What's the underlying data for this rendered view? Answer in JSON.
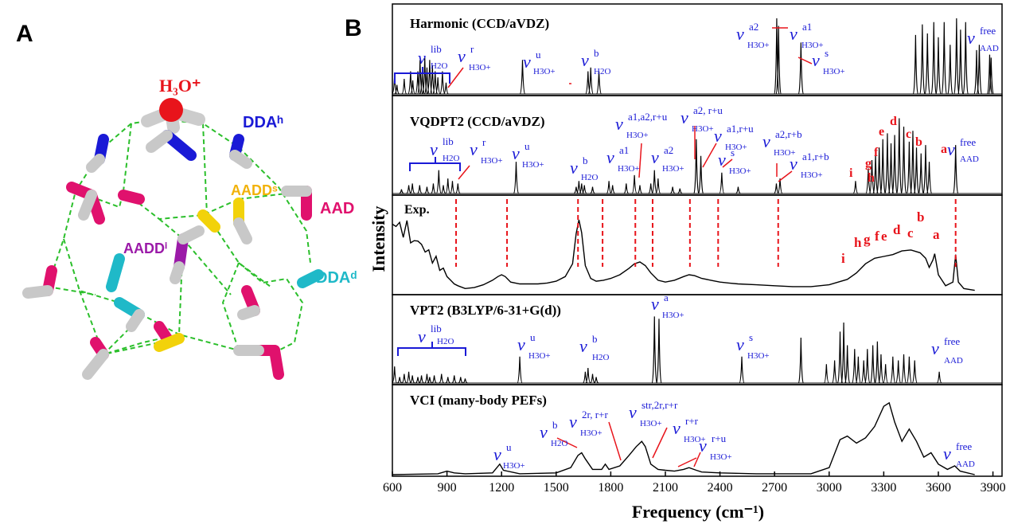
{
  "panel_a": {
    "letter": "A",
    "labels": [
      {
        "id": "h3o",
        "text": "H₃O⁺",
        "color": "#e8141b"
      },
      {
        "id": "ddah",
        "text": "DDAʰ",
        "color": "#1a1ad6"
      },
      {
        "id": "aadds",
        "text": "AADDˢ",
        "color": "#f2b20a"
      },
      {
        "id": "aad",
        "text": "AAD",
        "color": "#e0116d"
      },
      {
        "id": "aaddi",
        "text": "AADDⁱ",
        "color": "#9b1aa8"
      },
      {
        "id": "ddad",
        "text": "DDAᵈ",
        "color": "#1fb9c8"
      }
    ]
  },
  "panel_b": {
    "letter": "B",
    "ylabel": "Intensity",
    "xlabel": "Frequency (cm⁻¹)",
    "xticks": [
      600,
      900,
      1200,
      1500,
      1800,
      2100,
      2400,
      2700,
      3000,
      3300,
      3600,
      3900
    ],
    "subplot_titles": [
      "Harmonic (CCD/aVDZ)",
      "VQDPT2 (CCD/aVDZ)",
      "Exp.",
      "VPT2 (B3LYP/6-31+G(d))",
      "VCI (many-body PEFs)"
    ],
    "peak_letters": [
      "a",
      "b",
      "c",
      "d",
      "e",
      "f",
      "g",
      "h",
      "i"
    ]
  },
  "colors": {
    "spectrum": "#000000",
    "annotation": "#1a1ad6",
    "marker": "#e8141b"
  },
  "chart_data": {
    "type": "line",
    "xlim": [
      600,
      3950
    ],
    "xlabel": "Frequency (cm⁻¹)",
    "ylabel": "Intensity",
    "series": [
      {
        "name": "Harmonic (CCD/aVDZ)",
        "sticks": [
          [
            612,
            0.25
          ],
          [
            625,
            0.12
          ],
          [
            665,
            0.2
          ],
          [
            700,
            0.3
          ],
          [
            712,
            0.18
          ],
          [
            740,
            0.3
          ],
          [
            752,
            0.45
          ],
          [
            764,
            0.3
          ],
          [
            778,
            0.5
          ],
          [
            790,
            0.35
          ],
          [
            805,
            0.45
          ],
          [
            820,
            0.38
          ],
          [
            835,
            0.3
          ],
          [
            850,
            0.22
          ],
          [
            875,
            0.3
          ],
          [
            895,
            0.15
          ],
          [
            1315,
            0.45
          ],
          [
            1675,
            0.3
          ],
          [
            1690,
            0.35
          ],
          [
            1735,
            0.3
          ],
          [
            2712,
            1.0
          ],
          [
            2722,
            0.9
          ],
          [
            2845,
            0.68
          ],
          [
            3475,
            0.78
          ],
          [
            3512,
            0.92
          ],
          [
            3540,
            0.8
          ],
          [
            3575,
            0.95
          ],
          [
            3600,
            0.75
          ],
          [
            3632,
            0.95
          ],
          [
            3665,
            0.65
          ],
          [
            3700,
            1.0
          ],
          [
            3722,
            0.85
          ],
          [
            3750,
            0.95
          ],
          [
            3810,
            0.58
          ],
          [
            3825,
            0.65
          ],
          [
            3882,
            0.52
          ],
          [
            3890,
            0.48
          ]
        ]
      },
      {
        "name": "VQDPT2 (CCD/aVDZ)",
        "sticks": [
          [
            650,
            0.05
          ],
          [
            690,
            0.1
          ],
          [
            710,
            0.12
          ],
          [
            750,
            0.1
          ],
          [
            790,
            0.08
          ],
          [
            825,
            0.12
          ],
          [
            855,
            0.28
          ],
          [
            880,
            0.1
          ],
          [
            905,
            0.18
          ],
          [
            930,
            0.15
          ],
          [
            960,
            0.12
          ],
          [
            1280,
            0.38
          ],
          [
            1610,
            0.08
          ],
          [
            1625,
            0.15
          ],
          [
            1640,
            0.12
          ],
          [
            1655,
            0.1
          ],
          [
            1700,
            0.08
          ],
          [
            1790,
            0.15
          ],
          [
            1810,
            0.1
          ],
          [
            1885,
            0.12
          ],
          [
            1930,
            0.22
          ],
          [
            1960,
            0.1
          ],
          [
            2020,
            0.12
          ],
          [
            2040,
            0.28
          ],
          [
            2060,
            0.18
          ],
          [
            2140,
            0.08
          ],
          [
            2180,
            0.06
          ],
          [
            2270,
            0.65
          ],
          [
            2295,
            0.45
          ],
          [
            2410,
            0.25
          ],
          [
            2500,
            0.08
          ],
          [
            2710,
            0.12
          ],
          [
            2730,
            0.18
          ],
          [
            3145,
            0.15
          ],
          [
            3215,
            0.3
          ],
          [
            3235,
            0.4
          ],
          [
            3255,
            0.48
          ],
          [
            3275,
            0.55
          ],
          [
            3295,
            0.65
          ],
          [
            3320,
            0.72
          ],
          [
            3340,
            0.6
          ],
          [
            3360,
            0.7
          ],
          [
            3385,
            0.9
          ],
          [
            3410,
            0.8
          ],
          [
            3440,
            0.62
          ],
          [
            3460,
            0.75
          ],
          [
            3480,
            0.55
          ],
          [
            3505,
            0.48
          ],
          [
            3530,
            0.58
          ],
          [
            3550,
            0.38
          ],
          [
            3695,
            0.58
          ]
        ]
      },
      {
        "name": "Exp.",
        "points": [
          [
            600,
            0.7
          ],
          [
            620,
            0.78
          ],
          [
            640,
            0.72
          ],
          [
            660,
            0.66
          ],
          [
            680,
            0.74
          ],
          [
            700,
            0.6
          ],
          [
            720,
            0.52
          ],
          [
            740,
            0.62
          ],
          [
            760,
            0.48
          ],
          [
            780,
            0.5
          ],
          [
            800,
            0.42
          ],
          [
            820,
            0.38
          ],
          [
            840,
            0.35
          ],
          [
            860,
            0.3
          ],
          [
            880,
            0.22
          ],
          [
            900,
            0.18
          ],
          [
            920,
            0.14
          ],
          [
            940,
            0.1
          ],
          [
            960,
            0.08
          ],
          [
            1000,
            0.05
          ],
          [
            1050,
            0.06
          ],
          [
            1100,
            0.09
          ],
          [
            1150,
            0.14
          ],
          [
            1180,
            0.18
          ],
          [
            1200,
            0.2
          ],
          [
            1220,
            0.18
          ],
          [
            1250,
            0.12
          ],
          [
            1300,
            0.1
          ],
          [
            1350,
            0.1
          ],
          [
            1400,
            0.1
          ],
          [
            1450,
            0.11
          ],
          [
            1500,
            0.13
          ],
          [
            1550,
            0.18
          ],
          [
            1590,
            0.32
          ],
          [
            1610,
            0.65
          ],
          [
            1625,
            0.8
          ],
          [
            1640,
            0.66
          ],
          [
            1660,
            0.3
          ],
          [
            1690,
            0.16
          ],
          [
            1720,
            0.13
          ],
          [
            1760,
            0.14
          ],
          [
            1800,
            0.16
          ],
          [
            1850,
            0.2
          ],
          [
            1900,
            0.27
          ],
          [
            1930,
            0.32
          ],
          [
            1960,
            0.34
          ],
          [
            1990,
            0.3
          ],
          [
            2020,
            0.22
          ],
          [
            2060,
            0.14
          ],
          [
            2100,
            0.12
          ],
          [
            2150,
            0.14
          ],
          [
            2200,
            0.18
          ],
          [
            2230,
            0.2
          ],
          [
            2260,
            0.19
          ],
          [
            2300,
            0.16
          ],
          [
            2350,
            0.14
          ],
          [
            2400,
            0.12
          ],
          [
            2450,
            0.11
          ],
          [
            2500,
            0.1
          ],
          [
            2600,
            0.09
          ],
          [
            2700,
            0.08
          ],
          [
            2800,
            0.07
          ],
          [
            2900,
            0.07
          ],
          [
            3000,
            0.09
          ],
          [
            3050,
            0.12
          ],
          [
            3100,
            0.15
          ],
          [
            3150,
            0.22
          ],
          [
            3200,
            0.32
          ],
          [
            3250,
            0.38
          ],
          [
            3300,
            0.4
          ],
          [
            3350,
            0.42
          ],
          [
            3400,
            0.46
          ],
          [
            3450,
            0.47
          ],
          [
            3500,
            0.44
          ],
          [
            3530,
            0.38
          ],
          [
            3550,
            0.28
          ],
          [
            3570,
            0.36
          ],
          [
            3580,
            0.43
          ],
          [
            3600,
            0.2
          ],
          [
            3640,
            0.08
          ],
          [
            3680,
            0.12
          ],
          [
            3695,
            0.42
          ],
          [
            3710,
            0.12
          ],
          [
            3740,
            0.05
          ],
          [
            3800,
            0.03
          ]
        ]
      },
      {
        "name": "VPT2 (B3LYP/6-31+G(d))",
        "sticks": [
          [
            612,
            0.22
          ],
          [
            640,
            0.08
          ],
          [
            665,
            0.12
          ],
          [
            690,
            0.15
          ],
          [
            710,
            0.1
          ],
          [
            740,
            0.08
          ],
          [
            760,
            0.1
          ],
          [
            790,
            0.12
          ],
          [
            805,
            0.08
          ],
          [
            830,
            0.1
          ],
          [
            870,
            0.12
          ],
          [
            905,
            0.08
          ],
          [
            940,
            0.1
          ],
          [
            975,
            0.08
          ],
          [
            1000,
            0.06
          ],
          [
            1300,
            0.35
          ],
          [
            1660,
            0.15
          ],
          [
            1675,
            0.2
          ],
          [
            1700,
            0.12
          ],
          [
            1720,
            0.08
          ],
          [
            2040,
            0.88
          ],
          [
            2065,
            0.85
          ],
          [
            2520,
            0.35
          ],
          [
            2845,
            0.6
          ],
          [
            2985,
            0.25
          ],
          [
            3030,
            0.3
          ],
          [
            3060,
            0.68
          ],
          [
            3080,
            0.8
          ],
          [
            3100,
            0.5
          ],
          [
            3140,
            0.45
          ],
          [
            3160,
            0.35
          ],
          [
            3190,
            0.3
          ],
          [
            3210,
            0.45
          ],
          [
            3240,
            0.5
          ],
          [
            3265,
            0.55
          ],
          [
            3285,
            0.38
          ],
          [
            3310,
            0.25
          ],
          [
            3350,
            0.35
          ],
          [
            3380,
            0.3
          ],
          [
            3410,
            0.38
          ],
          [
            3440,
            0.35
          ],
          [
            3470,
            0.3
          ],
          [
            3605,
            0.15
          ]
        ]
      },
      {
        "name": "VCI (many-body PEFs)",
        "points": [
          [
            600,
            0.0
          ],
          [
            850,
            0.01
          ],
          [
            900,
            0.04
          ],
          [
            940,
            0.02
          ],
          [
            1000,
            0.01
          ],
          [
            1150,
            0.02
          ],
          [
            1190,
            0.12
          ],
          [
            1210,
            0.05
          ],
          [
            1300,
            0.01
          ],
          [
            1500,
            0.02
          ],
          [
            1580,
            0.08
          ],
          [
            1620,
            0.22
          ],
          [
            1640,
            0.25
          ],
          [
            1660,
            0.18
          ],
          [
            1700,
            0.06
          ],
          [
            1750,
            0.06
          ],
          [
            1770,
            0.12
          ],
          [
            1790,
            0.06
          ],
          [
            1850,
            0.1
          ],
          [
            1900,
            0.22
          ],
          [
            1940,
            0.32
          ],
          [
            1970,
            0.38
          ],
          [
            1990,
            0.32
          ],
          [
            2020,
            0.12
          ],
          [
            2060,
            0.06
          ],
          [
            2100,
            0.05
          ],
          [
            2150,
            0.04
          ],
          [
            2200,
            0.06
          ],
          [
            2230,
            0.08
          ],
          [
            2270,
            0.05
          ],
          [
            2300,
            0.03
          ],
          [
            2400,
            0.02
          ],
          [
            2600,
            0.01
          ],
          [
            2900,
            0.01
          ],
          [
            3000,
            0.08
          ],
          [
            3060,
            0.4
          ],
          [
            3100,
            0.44
          ],
          [
            3150,
            0.36
          ],
          [
            3200,
            0.42
          ],
          [
            3250,
            0.55
          ],
          [
            3300,
            0.78
          ],
          [
            3330,
            0.82
          ],
          [
            3360,
            0.6
          ],
          [
            3400,
            0.38
          ],
          [
            3440,
            0.52
          ],
          [
            3480,
            0.38
          ],
          [
            3520,
            0.2
          ],
          [
            3560,
            0.25
          ],
          [
            3600,
            0.12
          ],
          [
            3650,
            0.06
          ],
          [
            3690,
            0.1
          ],
          [
            3720,
            0.04
          ],
          [
            3800,
            0.0
          ]
        ]
      }
    ],
    "exp_markers": [
      950,
      1230,
      1620,
      1755,
      1935,
      2030,
      2235,
      2390,
      2720,
      3695
    ]
  }
}
